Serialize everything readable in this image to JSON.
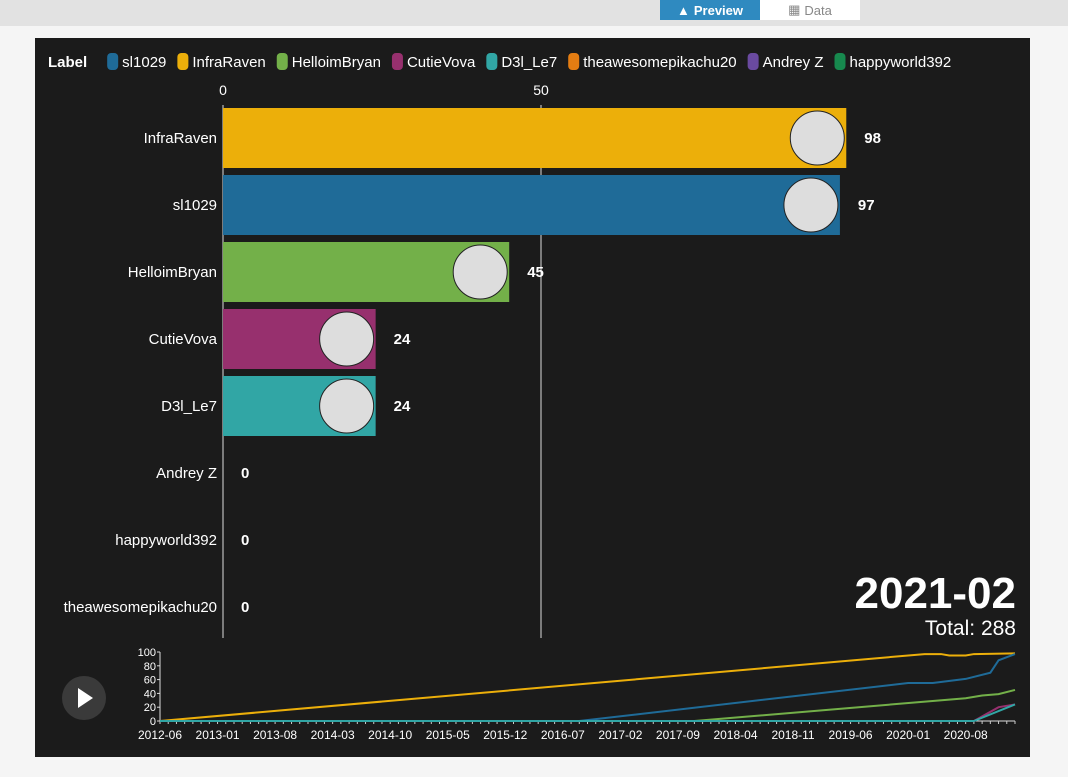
{
  "tabs": [
    {
      "label": "Preview",
      "icon": "area-chart-icon"
    },
    {
      "label": "Data",
      "icon": "table-icon"
    }
  ],
  "chart_data": {
    "type": "bar",
    "legend_title": "Label",
    "legend": [
      {
        "name": "sl1029",
        "color": "#1f6b98"
      },
      {
        "name": "InfraRaven",
        "color": "#ecaf0a"
      },
      {
        "name": "HelloimBryan",
        "color": "#73b049"
      },
      {
        "name": "CutieVova",
        "color": "#97306e"
      },
      {
        "name": "D3l_Le7",
        "color": "#31a6a5"
      },
      {
        "name": "theawesomepikachu20",
        "color": "#e47d12"
      },
      {
        "name": "Andrey Z",
        "color": "#6a4aa0"
      },
      {
        "name": "happyworld392",
        "color": "#17894e"
      }
    ],
    "x_ticks": [
      0,
      50
    ],
    "bars": [
      {
        "name": "InfraRaven",
        "value": 98
      },
      {
        "name": "sl1029",
        "value": 97
      },
      {
        "name": "HelloimBryan",
        "value": 45
      },
      {
        "name": "CutieVova",
        "value": 24
      },
      {
        "name": "D3l_Le7",
        "value": 24
      },
      {
        "name": "Andrey Z",
        "value": 0
      },
      {
        "name": "happyworld392",
        "value": 0
      },
      {
        "name": "theawesomepikachu20",
        "value": 0
      }
    ],
    "current_date": "2021-02",
    "total_label": "Total: 288",
    "timeline": {
      "type": "line",
      "ylim": [
        0,
        100
      ],
      "y_ticks": [
        0,
        20,
        40,
        60,
        80,
        100
      ],
      "x_range": [
        "2012-06",
        "2021-02"
      ],
      "x_ticks": [
        "2012-06",
        "2013-01",
        "2013-08",
        "2014-03",
        "2014-10",
        "2015-05",
        "2015-12",
        "2016-07",
        "2017-02",
        "2017-09",
        "2018-04",
        "2018-11",
        "2019-06",
        "2020-01",
        "2020-08"
      ],
      "series": [
        {
          "name": "InfraRaven",
          "points": [
            [
              "2012-06",
              0
            ],
            [
              "2020-03",
              97
            ],
            [
              "2020-05",
              97
            ],
            [
              "2020-06",
              95
            ],
            [
              "2020-08",
              95
            ],
            [
              "2020-09",
              97
            ],
            [
              "2021-02",
              98
            ]
          ]
        },
        {
          "name": "sl1029",
          "points": [
            [
              "2012-06",
              0
            ],
            [
              "2016-09",
              0
            ],
            [
              "2020-01",
              55
            ],
            [
              "2020-04",
              55
            ],
            [
              "2020-08",
              61
            ],
            [
              "2020-11",
              70
            ],
            [
              "2020-12",
              88
            ],
            [
              "2021-02",
              97
            ]
          ]
        },
        {
          "name": "HelloimBryan",
          "points": [
            [
              "2012-06",
              0
            ],
            [
              "2017-11",
              0
            ],
            [
              "2020-08",
              33
            ],
            [
              "2020-10",
              37
            ],
            [
              "2020-12",
              39
            ],
            [
              "2021-02",
              45
            ]
          ]
        },
        {
          "name": "CutieVova",
          "points": [
            [
              "2012-06",
              0
            ],
            [
              "2020-09",
              0
            ],
            [
              "2020-12",
              20
            ],
            [
              "2021-02",
              24
            ]
          ]
        },
        {
          "name": "D3l_Le7",
          "points": [
            [
              "2012-06",
              0
            ],
            [
              "2020-09",
              0
            ],
            [
              "2021-02",
              24
            ]
          ]
        }
      ]
    }
  },
  "play_button": {
    "icon": "play-icon"
  }
}
